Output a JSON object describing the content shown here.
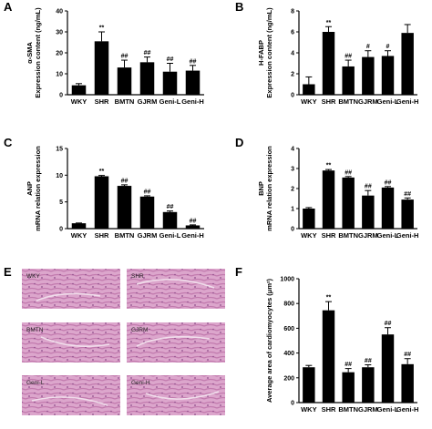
{
  "chart_data": [
    {
      "type": "bar",
      "panel": "A",
      "ylabel_lines": [
        "α-SMA",
        "Expression content (ng/mL)"
      ],
      "categories": [
        "WKY",
        "SHR",
        "BMTN",
        "GJRM",
        "Geni-L",
        "Geni-H"
      ],
      "values": [
        4.5,
        25.5,
        13,
        15.5,
        11,
        11.5
      ],
      "errors": [
        0.8,
        4.5,
        3.5,
        2.5,
        4.0,
        2.5
      ],
      "significance": [
        "",
        "**",
        "##",
        "##",
        "##",
        "##"
      ],
      "ylim": [
        0,
        40
      ],
      "yticks": [
        "0",
        "10",
        "20",
        "30",
        "40"
      ],
      "color": "#000000"
    },
    {
      "type": "bar",
      "panel": "B",
      "ylabel_lines": [
        "H-FABP",
        "Expression content (ng/mL)"
      ],
      "categories": [
        "WKY",
        "SHR",
        "BMTN",
        "GJRM",
        "Geni-L",
        "Geni-H"
      ],
      "values": [
        1.0,
        6.0,
        2.7,
        3.6,
        3.7,
        5.9
      ],
      "errors": [
        0.7,
        0.5,
        0.6,
        0.6,
        0.5,
        0.8
      ],
      "significance": [
        "",
        "**",
        "##",
        "#",
        "#",
        ""
      ],
      "ylim": [
        0,
        8
      ],
      "yticks": [
        "0",
        "2",
        "4",
        "6",
        "8"
      ],
      "color": "#000000"
    },
    {
      "type": "bar",
      "panel": "C",
      "ylabel_lines": [
        "ANP",
        "mRNA relation expression"
      ],
      "categories": [
        "WKY",
        "SHR",
        "BMTN",
        "GJRM",
        "Geni-L",
        "Geni-H"
      ],
      "values": [
        1.0,
        9.8,
        8.0,
        6.0,
        3.1,
        0.6
      ],
      "errors": [
        0.05,
        0.15,
        0.2,
        0.15,
        0.2,
        0.1
      ],
      "significance": [
        "",
        "**",
        "##",
        "##",
        "##",
        "##"
      ],
      "ylim": [
        0,
        15
      ],
      "yticks": [
        "0",
        "5",
        "10",
        "15"
      ],
      "color": "#000000"
    },
    {
      "type": "bar",
      "panel": "D",
      "ylabel_lines": [
        "BNP",
        "mRNA relation expression"
      ],
      "categories": [
        "WKY",
        "SHR",
        "BMTN",
        "GJRM",
        "Geni-L",
        "Geni-H"
      ],
      "values": [
        1.0,
        2.9,
        2.55,
        1.65,
        2.05,
        1.45
      ],
      "errors": [
        0.05,
        0.05,
        0.05,
        0.25,
        0.05,
        0.08
      ],
      "significance": [
        "",
        "**",
        "##",
        "##",
        "##",
        "##"
      ],
      "ylim": [
        0,
        4
      ],
      "yticks": [
        "0",
        "1",
        "2",
        "3",
        "4"
      ],
      "color": "#000000"
    },
    {
      "type": "bar",
      "panel": "F",
      "ylabel_lines": [
        "Average area of cardiomyocytes (μm²)"
      ],
      "categories": [
        "WKY",
        "SHR",
        "BMTN",
        "GJRM",
        "Geni-L",
        "Geni-H"
      ],
      "values": [
        285,
        745,
        245,
        285,
        550,
        310
      ],
      "errors": [
        15,
        70,
        30,
        20,
        55,
        45
      ],
      "significance": [
        "",
        "**",
        "##",
        "##",
        "##",
        "##"
      ],
      "ylim": [
        0,
        1000
      ],
      "yticks": [
        "0",
        "200",
        "400",
        "600",
        "800",
        "1000"
      ],
      "color": "#000000"
    }
  ],
  "histology": {
    "panel": "E",
    "labels": [
      "WKY",
      "SHR",
      "BMTN",
      "GJRM",
      "Geni-L",
      "Geni-H"
    ],
    "stain_colors": [
      "#d9a3c9",
      "#c77eb0",
      "#e7c6de"
    ]
  }
}
